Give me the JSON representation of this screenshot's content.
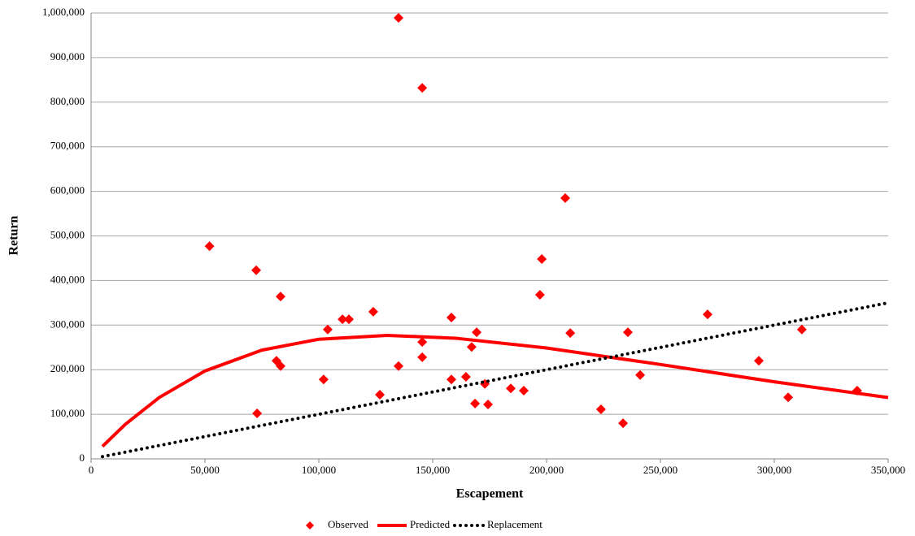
{
  "chart_data": {
    "type": "scatter",
    "xlabel": "Escapement",
    "ylabel": "Return",
    "xlim": [
      0,
      350000
    ],
    "ylim": [
      0,
      1000000
    ],
    "xticks": [
      0,
      {
        "value": 50000,
        "label": "50,000"
      },
      {
        "value": 100000,
        "label": "100,000"
      },
      {
        "value": 150000,
        "label": "150,000"
      },
      {
        "value": 200000,
        "label": "200,000"
      },
      {
        "value": 250000,
        "label": "250,000"
      },
      {
        "value": 300000,
        "label": "300,000"
      },
      {
        "value": 350000,
        "label": "350,000"
      }
    ],
    "yticks": [
      0,
      {
        "value": 100000,
        "label": "100,000"
      },
      {
        "value": 200000,
        "label": "200,000"
      },
      {
        "value": 300000,
        "label": "300,000"
      },
      {
        "value": 400000,
        "label": "400,000"
      },
      {
        "value": 500000,
        "label": "500,000"
      },
      {
        "value": 600000,
        "label": "600,000"
      },
      {
        "value": 700000,
        "label": "700,000"
      },
      {
        "value": 800000,
        "label": "800,000"
      },
      {
        "value": 900000,
        "label": "900,000"
      },
      {
        "value": 1000000,
        "label": "1,000,000"
      }
    ],
    "grid": true,
    "legend": "bottom",
    "series": [
      {
        "name": "Observed",
        "color": "#ff0000",
        "mode": "markers",
        "x": [
          52000,
          72500,
          72900,
          83200,
          81400,
          83200,
          103900,
          102100,
          110400,
          113200,
          123900,
          126800,
          135000,
          135000,
          145400,
          145400,
          145400,
          158200,
          158200,
          164600,
          167100,
          169300,
          168600,
          172900,
          174300,
          184300,
          190000,
          197100,
          197900,
          208200,
          210400,
          223900,
          233600,
          235700,
          241100,
          270700,
          293200,
          306100,
          312100,
          336400
        ],
        "values": [
          477000,
          423000,
          102000,
          364000,
          220000,
          208000,
          290000,
          178000,
          313000,
          313000,
          330000,
          144000,
          989000,
          208000,
          832000,
          262000,
          228000,
          317000,
          178000,
          184000,
          251000,
          284000,
          124000,
          168000,
          122000,
          158000,
          153000,
          368000,
          448000,
          585000,
          282000,
          111000,
          80000,
          284000,
          188000,
          324000,
          220000,
          138000,
          290000,
          153000
        ]
      },
      {
        "name": "Predicted",
        "color": "#ff0000",
        "mode": "line",
        "dash": "solid",
        "x": [
          5000,
          15000,
          30000,
          50000,
          75000,
          100000,
          130000,
          160000,
          200000,
          250000,
          300000,
          350000
        ],
        "values": [
          27900,
          77400,
          137900,
          197100,
          243900,
          268300,
          276900,
          270600,
          248600,
          211600,
          172800,
          137500
        ]
      },
      {
        "name": "Replacement",
        "color": "#000000",
        "mode": "line",
        "dash": "dotted",
        "x": [
          5000,
          350000
        ],
        "values": [
          5000,
          350000
        ]
      }
    ]
  }
}
